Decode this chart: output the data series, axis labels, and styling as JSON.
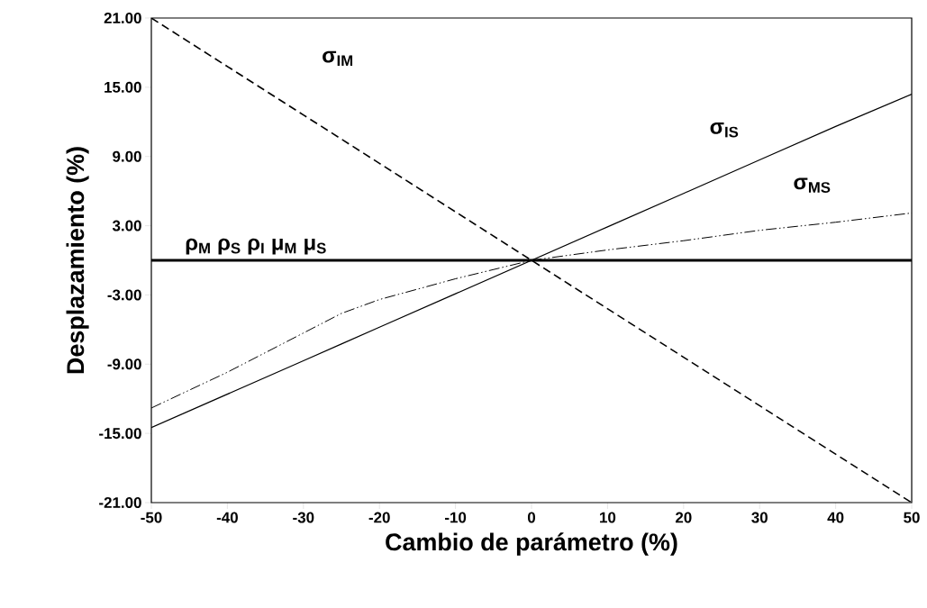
{
  "chart_data": {
    "type": "line",
    "xlabel": "Cambio de parámetro (%)",
    "ylabel": "Desplazamiento (%)",
    "x": [
      -50,
      -40,
      -30,
      -25,
      -20,
      -10,
      0,
      10,
      20,
      30,
      40,
      50
    ],
    "series": [
      {
        "name": "σ$_{IM}$",
        "color": "#000000",
        "line_style": "dashed",
        "values": [
          21,
          16.8,
          12.6,
          10.5,
          8.4,
          4.2,
          0,
          -4.2,
          -8.4,
          -12.6,
          -16.8,
          -21
        ]
      },
      {
        "name": "σ$_{IS}$",
        "color": "#000000",
        "line_style": "solid",
        "values": [
          -14.5,
          -11.6,
          -8.7,
          -7.25,
          -5.8,
          -2.9,
          0,
          2.9,
          5.8,
          8.7,
          11.6,
          14.4
        ]
      },
      {
        "name": "σ$_{MS}$",
        "color": "#000000",
        "line_style": "dashdotdotted",
        "values": [
          -12.8,
          -9.7,
          -6.3,
          -4.6,
          -3.4,
          -1.6,
          0,
          0.9,
          1.7,
          2.6,
          3.3,
          4.1
        ]
      },
      {
        "name": "ρ$_{M}$ ρ$_{S}$ ρ$_{I}$ μ$_{M}$ μ$_{S}$",
        "color": "#000000",
        "line_style": "solid",
        "values": [
          0,
          0,
          0,
          0,
          0,
          0,
          0,
          0,
          0,
          0,
          0,
          0
        ]
      }
    ],
    "xlim": [
      -50,
      50
    ],
    "ylim": [
      -21,
      21
    ],
    "xticks": [
      -50,
      -40,
      -30,
      -20,
      -10,
      0,
      10,
      20,
      30,
      40,
      50
    ],
    "yticks": [
      {
        "value": -21,
        "label": "-21.00"
      },
      {
        "value": -15,
        "label": "-15.00"
      },
      {
        "value": -9,
        "label": "-9.00"
      },
      {
        "value": -3,
        "label": "-3.00"
      },
      {
        "value": 3,
        "label": "3.00"
      },
      {
        "value": 9,
        "label": "9.00"
      },
      {
        "value": 15,
        "label": "15.00"
      },
      {
        "value": 21,
        "label": "21.00"
      }
    ],
    "grid": false,
    "legend": false
  }
}
